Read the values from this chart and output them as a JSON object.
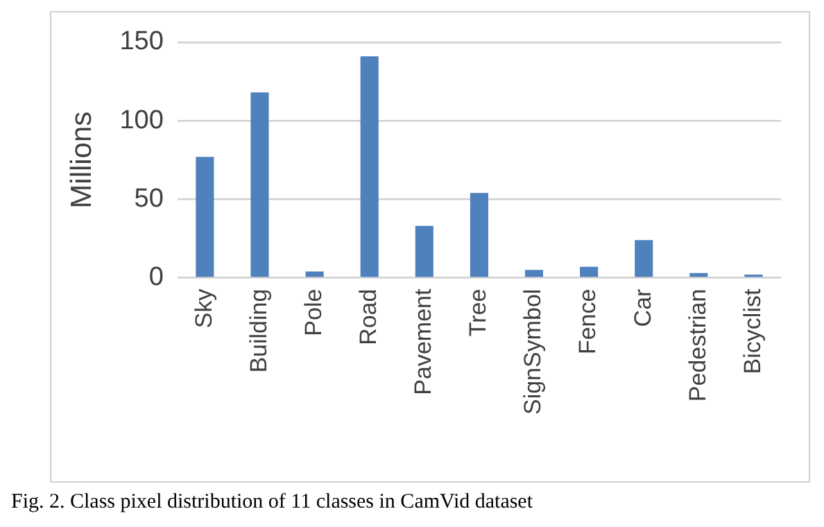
{
  "chart_data": {
    "type": "bar",
    "ylabel": "Millions",
    "categories": [
      "Sky",
      "Building",
      "Pole",
      "Road",
      "Pavement",
      "Tree",
      "SignSymbol",
      "Fence",
      "Car",
      "Pedestrian",
      "Bicyclist"
    ],
    "values": [
      77,
      118,
      4,
      141,
      33,
      54,
      5,
      7,
      24,
      3,
      2
    ],
    "color": "#4f81bd",
    "ylim": [
      0,
      150
    ],
    "yticks": [
      0,
      50,
      100,
      150
    ],
    "grid": "y",
    "legend": false,
    "annotations": [
      "Fig. 2.  Class pixel distribution of 11 classes in CamVid dataset"
    ]
  }
}
